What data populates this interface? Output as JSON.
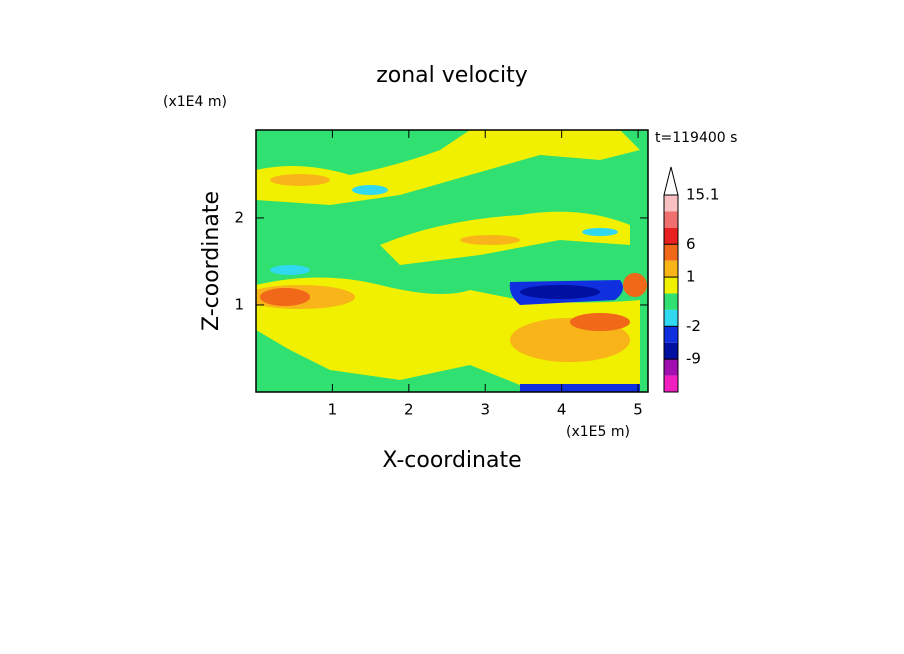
{
  "chart_data": {
    "type": "contour",
    "title": "zonal velocity",
    "x_label": "X-coordinate",
    "y_label": "Z-coordinate",
    "x_unit": "(x1E5 m)",
    "y_unit": "(x1E4 m)",
    "annotation": "t=119400 s",
    "xlim": [
      0,
      5.13
    ],
    "xticks": [
      1,
      2,
      3,
      4,
      5
    ],
    "ylim": [
      0,
      3.01
    ],
    "yticks": [
      1,
      2
    ],
    "colorbar": {
      "levels": [
        15.1,
        12,
        9,
        6,
        3,
        1,
        0,
        -1,
        -2,
        -5,
        -9,
        -12,
        -15
      ],
      "colors": [
        "#f8c0c0",
        "#f07070",
        "#e82020",
        "#f06818",
        "#f8b418",
        "#f0f000",
        "#30e070",
        "#30d8f0",
        "#1030e0",
        "#0010a0",
        "#a010b0",
        "#f020c0"
      ],
      "ticks": [
        15.1,
        6,
        1,
        -2,
        -9
      ]
    }
  }
}
